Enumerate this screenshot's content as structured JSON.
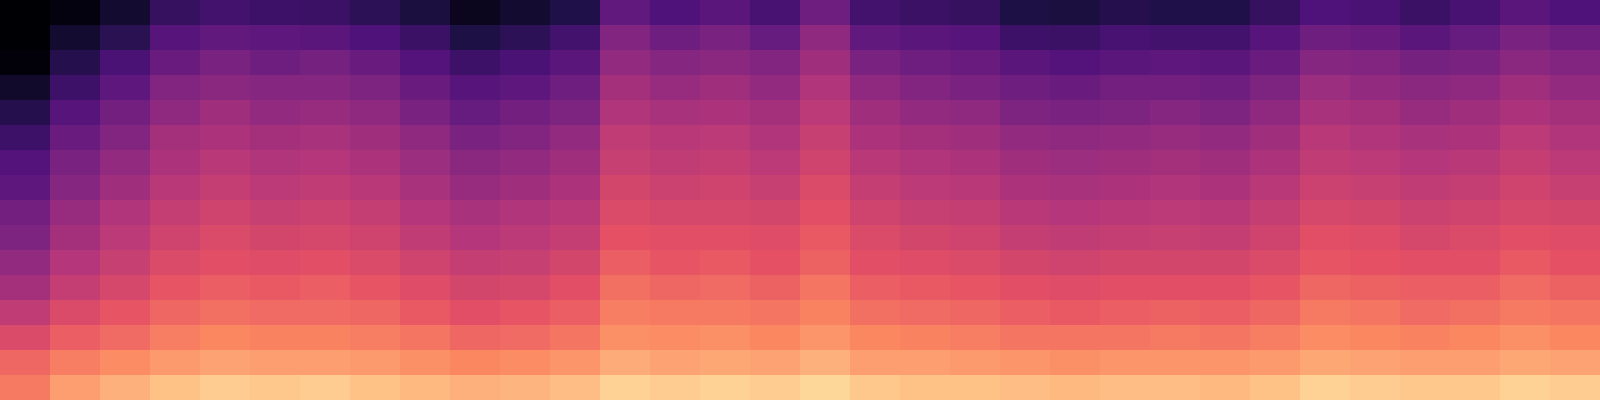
{
  "chart_data": {
    "type": "heatmap",
    "tick_labels": false,
    "zlim": [
      0,
      100
    ],
    "cells": [
      [
        0,
        2,
        9,
        19,
        22,
        21,
        20,
        17,
        12,
        5,
        9,
        14,
        30,
        25,
        28,
        23,
        33,
        22,
        20,
        19,
        13,
        12,
        15,
        14,
        14,
        19,
        25,
        24,
        20,
        23,
        28,
        25
      ],
      [
        0,
        9,
        16,
        27,
        30,
        29,
        28,
        25,
        20,
        13,
        17,
        22,
        38,
        33,
        36,
        31,
        41,
        30,
        28,
        27,
        21,
        20,
        23,
        22,
        22,
        27,
        33,
        32,
        28,
        31,
        36,
        33
      ],
      [
        1,
        15,
        24,
        32,
        36,
        33,
        35,
        32,
        26,
        21,
        24,
        28,
        42,
        39,
        40,
        38,
        45,
        36,
        33,
        32,
        28,
        26,
        28,
        29,
        28,
        32,
        39,
        38,
        35,
        36,
        40,
        38
      ],
      [
        8,
        21,
        29,
        38,
        40,
        39,
        39,
        37,
        32,
        27,
        29,
        33,
        46,
        43,
        45,
        42,
        49,
        41,
        38,
        36,
        33,
        32,
        34,
        34,
        33,
        37,
        44,
        42,
        40,
        41,
        45,
        42
      ],
      [
        15,
        27,
        34,
        41,
        45,
        42,
        43,
        41,
        36,
        31,
        34,
        37,
        49,
        47,
        48,
        46,
        52,
        45,
        42,
        41,
        37,
        36,
        37,
        39,
        37,
        41,
        47,
        46,
        43,
        45,
        48,
        46
      ],
      [
        21,
        32,
        38,
        46,
        48,
        46,
        47,
        45,
        41,
        36,
        38,
        42,
        53,
        51,
        52,
        49,
        55,
        48,
        46,
        45,
        42,
        41,
        42,
        43,
        42,
        45,
        51,
        49,
        47,
        48,
        52,
        49
      ],
      [
        26,
        36,
        42,
        48,
        51,
        49,
        50,
        48,
        44,
        40,
        42,
        45,
        55,
        53,
        54,
        52,
        57,
        51,
        49,
        48,
        45,
        44,
        45,
        46,
        45,
        48,
        53,
        52,
        50,
        51,
        54,
        52
      ],
      [
        29,
        39,
        45,
        51,
        54,
        52,
        53,
        51,
        47,
        43,
        45,
        48,
        58,
        56,
        57,
        55,
        60,
        54,
        52,
        51,
        48,
        47,
        48,
        49,
        48,
        51,
        56,
        55,
        53,
        54,
        57,
        55
      ],
      [
        34,
        43,
        49,
        54,
        57,
        55,
        56,
        54,
        50,
        47,
        49,
        51,
        60,
        59,
        59,
        58,
        62,
        57,
        55,
        54,
        51,
        50,
        51,
        52,
        51,
        54,
        59,
        58,
        56,
        57,
        59,
        58
      ],
      [
        37,
        46,
        52,
        57,
        60,
        58,
        59,
        57,
        53,
        50,
        52,
        54,
        63,
        62,
        62,
        61,
        65,
        60,
        58,
        57,
        54,
        53,
        54,
        55,
        54,
        57,
        62,
        61,
        59,
        60,
        62,
        61
      ],
      [
        42,
        50,
        55,
        60,
        62,
        61,
        62,
        60,
        57,
        54,
        55,
        58,
        66,
        64,
        65,
        63,
        67,
        62,
        61,
        60,
        58,
        57,
        58,
        58,
        58,
        60,
        64,
        63,
        62,
        62,
        65,
        63
      ],
      [
        46,
        54,
        59,
        64,
        66,
        65,
        66,
        64,
        61,
        58,
        59,
        62,
        70,
        68,
        69,
        67,
        71,
        66,
        65,
        64,
        62,
        61,
        62,
        62,
        62,
        64,
        68,
        67,
        66,
        66,
        69,
        67
      ],
      [
        53,
        60,
        64,
        68,
        70,
        69,
        69,
        68,
        65,
        62,
        64,
        66,
        73,
        72,
        72,
        71,
        74,
        70,
        69,
        68,
        66,
        65,
        66,
        67,
        66,
        68,
        72,
        71,
        69,
        70,
        72,
        71
      ],
      [
        60,
        66,
        69,
        73,
        75,
        74,
        74,
        73,
        71,
        68,
        69,
        71,
        77,
        76,
        77,
        75,
        78,
        75,
        74,
        73,
        71,
        71,
        71,
        72,
        71,
        73,
        76,
        75,
        74,
        75,
        77,
        75
      ],
      [
        68,
        73,
        76,
        79,
        81,
        80,
        80,
        79,
        77,
        75,
        76,
        78,
        83,
        81,
        82,
        81,
        84,
        80,
        80,
        79,
        78,
        77,
        78,
        78,
        78,
        79,
        82,
        81,
        80,
        80,
        82,
        81
      ],
      [
        72,
        80,
        84,
        88,
        90,
        89,
        90,
        88,
        86,
        84,
        85,
        87,
        91,
        90,
        91,
        90,
        92,
        89,
        88,
        88,
        87,
        86,
        87,
        87,
        86,
        88,
        91,
        90,
        89,
        89,
        91,
        90
      ]
    ]
  }
}
